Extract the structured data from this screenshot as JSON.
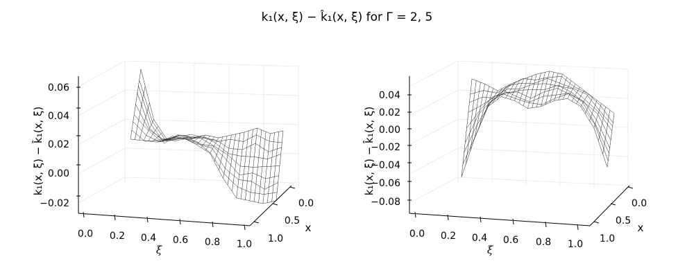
{
  "figure": {
    "title": "k₁(x, ξ) − k̂₁(x, ξ) for Γ = 2, 5"
  },
  "chart_data": [
    {
      "type": "surface",
      "zlabel": "k₁(x, ξ) − k̂₁(x, ξ)",
      "xlabel": "ξ",
      "ylabel": "x",
      "xticks": [
        "0.0",
        "0.2",
        "0.4",
        "0.6",
        "0.8",
        "1.0"
      ],
      "yticks": [
        "0.0",
        "0.5",
        "1.0"
      ],
      "zticks": [
        "−0.02",
        "0.00",
        "0.02",
        "0.04",
        "0.06"
      ],
      "xlim": [
        0,
        1
      ],
      "ylim": [
        0,
        1
      ],
      "zlim": [
        -0.032,
        0.066
      ],
      "wire_front_z": [
        0.016,
        0.015,
        0.014,
        0.015,
        0.017,
        0.012,
        0.006,
        -0.012,
        -0.026,
        -0.028,
        -0.03,
        -0.028
      ],
      "wire_back_z": [
        0.066,
        0.03,
        0.016,
        0.019,
        0.017,
        0.019,
        0.017,
        0.019,
        0.021,
        0.024,
        0.02,
        0.022
      ],
      "grid": true
    },
    {
      "type": "surface",
      "zlabel": "k₁(x, ξ) − k̂₁(x, ξ)",
      "xlabel": "ξ",
      "ylabel": "x",
      "xticks": [
        "0.0",
        "0.2",
        "0.4",
        "0.6",
        "0.8",
        "1.0"
      ],
      "yticks": [
        "0.0",
        "0.5",
        "1.0"
      ],
      "zticks": [
        "−0.08",
        "−0.06",
        "−0.04",
        "−0.02",
        "0.00",
        "0.02",
        "0.04"
      ],
      "xlim": [
        0,
        1
      ],
      "ylim": [
        0,
        1
      ],
      "zlim": [
        -0.09,
        0.05
      ],
      "wire_front_z": [
        -0.06,
        -0.02,
        0.012,
        0.022,
        0.018,
        0.01,
        0.012,
        0.018,
        0.02,
        0.012,
        -0.01,
        -0.05
      ],
      "wire_back_z": [
        0.04,
        0.035,
        0.028,
        0.035,
        0.04,
        0.045,
        0.048,
        0.045,
        0.035,
        0.025,
        0.015,
        0.005
      ],
      "grid": true
    }
  ]
}
